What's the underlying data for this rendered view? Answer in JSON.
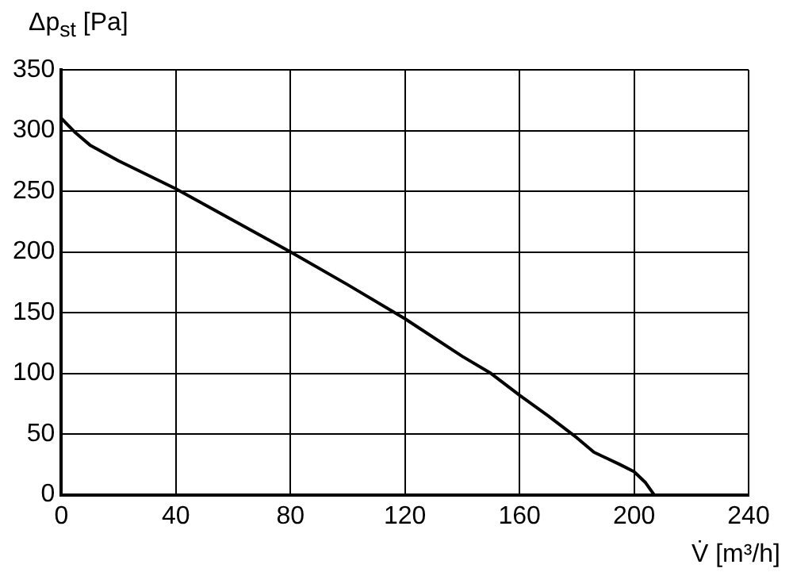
{
  "chart_data": {
    "type": "line",
    "xlabel": "V̇ [m³/h]",
    "ylabel": "Δp$_{st}$ [Pa]",
    "x": [
      0,
      5,
      10,
      20,
      40,
      60,
      80,
      100,
      120,
      140,
      150,
      160,
      170,
      180,
      186,
      195,
      200,
      204,
      207
    ],
    "series": [
      {
        "color": "#000000",
        "values": [
          310,
          298,
          288,
          275,
          252,
          226,
          200,
          173,
          145,
          114,
          100,
          82,
          65,
          47,
          35,
          25,
          19,
          10,
          0
        ]
      }
    ],
    "xlim": [
      0,
      240
    ],
    "xticks": [
      0,
      40,
      80,
      120,
      160,
      200,
      240
    ],
    "ylim": [
      0,
      350
    ],
    "yticks": [
      0,
      50,
      100,
      150,
      200,
      250,
      300,
      350
    ],
    "grid": true,
    "legend": false,
    "marker": "none",
    "line_style": "solid"
  }
}
